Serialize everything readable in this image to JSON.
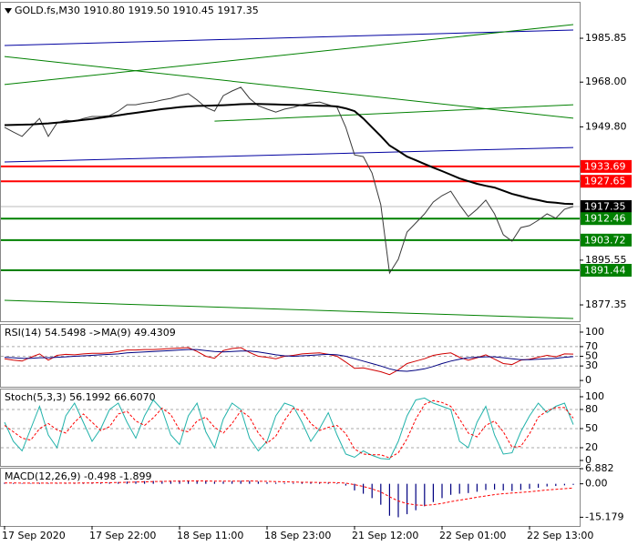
{
  "chart_data": [
    {
      "type": "line",
      "title": "GOLD.fs,M30  1910.80 1919.50 1910.45 1917.35",
      "categories": [
        "17 Sep 2020",
        null,
        null,
        null,
        null,
        null,
        null,
        null,
        null,
        null,
        "17 Sep 22:00",
        null,
        null,
        null,
        null,
        null,
        null,
        null,
        null,
        null,
        "18 Sep 11:00",
        null,
        null,
        null,
        null,
        null,
        null,
        null,
        null,
        null,
        "18 Sep 23:00",
        null,
        null,
        null,
        null,
        null,
        null,
        null,
        null,
        null,
        "21 Sep 12:00",
        null,
        null,
        null,
        null,
        null,
        null,
        null,
        null,
        null,
        "22 Sep 01:00",
        null,
        null,
        null,
        null,
        null,
        null,
        null,
        null,
        null,
        "22 Sep 13:00",
        null,
        null,
        null,
        null,
        null
      ],
      "ylim": [
        1870.7,
        2000.3
      ],
      "yticks": [
        1985.85,
        {
          "value": 1968,
          "label": "1968.00"
        },
        {
          "value": 1949.8,
          "label": "1949.80"
        },
        1895.55,
        1877.35
      ],
      "series": [
        {
          "color": "#3a3a3a",
          "width": 1,
          "values": [
            1949.6,
            1947.7,
            1945.9,
            1949.6,
            1953.2,
            1945.9,
            1951.4,
            1952.5,
            1952.1,
            1953.2,
            1954.0,
            1954.0,
            1954.4,
            1956.2,
            1958.8,
            1958.8,
            1959.5,
            1959.9,
            1960.7,
            1961.4,
            1962.5,
            1963.3,
            1960.7,
            1957.7,
            1956.2,
            1962.5,
            1964.4,
            1965.9,
            1961.4,
            1958.4,
            1957.0,
            1955.8,
            1957.0,
            1957.7,
            1958.8,
            1959.5,
            1959.9,
            1958.8,
            1957.7,
            1949.6,
            1938.4,
            1937.7,
            1931.0,
            1918.1,
            1890.3,
            1895.9,
            1907.0,
            1910.7,
            1914.4,
            1919.2,
            1921.8,
            1923.6,
            1918.1,
            1913.3,
            1916.3,
            1920.0,
            1914.4,
            1905.9,
            1903.3,
            1908.8,
            1909.6,
            1911.8,
            1914.4,
            1912.6,
            1916.3,
            1917.35
          ]
        },
        {
          "color": "#000000",
          "width": 2,
          "values": [
            1950.5,
            1950.6,
            1950.7,
            1950.8,
            1951.0,
            1951.2,
            1951.5,
            1951.8,
            1952.2,
            1952.6,
            1953.0,
            1953.5,
            1954.0,
            1954.5,
            1955.0,
            1955.5,
            1956.0,
            1956.5,
            1957.0,
            1957.4,
            1957.8,
            1958.1,
            1958.3,
            1958.4,
            1958.5,
            1958.6,
            1958.8,
            1959.0,
            1959.1,
            1959.1,
            1959.0,
            1958.9,
            1958.8,
            1958.7,
            1958.6,
            1958.5,
            1958.4,
            1958.3,
            1958.1,
            1957.3,
            1956.2,
            1953.2,
            1949.6,
            1946.0,
            1942.2,
            1940.0,
            1937.7,
            1936.2,
            1934.7,
            1933.2,
            1931.8,
            1930.3,
            1928.8,
            1927.7,
            1926.6,
            1925.8,
            1925.1,
            1923.8,
            1922.5,
            1921.6,
            1920.7,
            1920.0,
            1919.2,
            1918.9,
            1918.5,
            1918.4
          ]
        }
      ],
      "trendlines": [
        {
          "color": "#0000a0",
          "x": [
            0,
            65
          ],
          "values": [
            1982.9,
            1989.2
          ]
        },
        {
          "color": "#0000a0",
          "x": [
            0,
            65
          ],
          "values": [
            1935.5,
            1941.4
          ]
        },
        {
          "color": "#008000",
          "x": [
            0,
            65
          ],
          "values": [
            1967.0,
            1991.4
          ]
        },
        {
          "color": "#008000",
          "x": [
            0,
            65
          ],
          "values": [
            1978.4,
            1953.3
          ]
        },
        {
          "color": "#008000",
          "x": [
            24,
            65
          ],
          "values": [
            1952.1,
            1958.8
          ]
        },
        {
          "color": "#008000",
          "x": [
            0,
            65
          ],
          "values": [
            1879.2,
            1871.8
          ]
        }
      ],
      "levels": [
        {
          "value": 1933.69,
          "color": "#ff0000"
        },
        {
          "value": 1927.65,
          "color": "#ff0000"
        },
        {
          "value": 1917.35,
          "color": "#000000"
        },
        {
          "value": 1912.46,
          "color": "#008000"
        },
        {
          "value": 1903.72,
          "color": "#008000"
        },
        {
          "value": 1891.44,
          "color": "#008000"
        }
      ]
    },
    {
      "type": "line",
      "title": "RSI(14) 54.5498 ->MA(9) 49.4309",
      "ylim": [
        -13,
        115
      ],
      "yticks": [
        100,
        70,
        50,
        30,
        0
      ],
      "grid": true,
      "series": [
        {
          "color": "#d00000",
          "width": 1,
          "values": [
            45,
            42,
            40,
            48,
            55,
            42,
            52,
            54,
            53,
            55,
            56,
            56,
            57,
            60,
            63,
            63,
            64,
            64,
            65,
            66,
            67,
            68,
            60,
            50,
            46,
            62,
            66,
            68,
            58,
            50,
            48,
            45,
            50,
            52,
            55,
            56,
            57,
            54,
            50,
            38,
            25,
            26,
            22,
            18,
            12,
            22,
            35,
            40,
            45,
            52,
            55,
            57,
            48,
            42,
            47,
            53,
            44,
            35,
            33,
            42,
            44,
            48,
            52,
            49,
            55,
            54.5
          ]
        },
        {
          "color": "#000080",
          "width": 1,
          "values": [
            48,
            47,
            46,
            46,
            47,
            47,
            48,
            49,
            50,
            51,
            52,
            53,
            54,
            55,
            57,
            58,
            59,
            60,
            61,
            62,
            63,
            64,
            64,
            62,
            60,
            59,
            60,
            61,
            61,
            59,
            56,
            53,
            51,
            50,
            51,
            52,
            53,
            54,
            53,
            50,
            45,
            40,
            35,
            30,
            24,
            20,
            19,
            21,
            24,
            29,
            35,
            40,
            44,
            47,
            48,
            49,
            49,
            47,
            45,
            43,
            43,
            44,
            45,
            46,
            48,
            49.4
          ]
        }
      ]
    },
    {
      "type": "line",
      "title": "Stoch(5,3,3) 56.1992 66.6070",
      "ylim": [
        -8.6,
        111.4
      ],
      "yticks": [
        100,
        80,
        50,
        20,
        0
      ],
      "grid": true,
      "series": [
        {
          "color": "#20b2aa",
          "width": 1,
          "values": [
            60,
            30,
            15,
            50,
            85,
            40,
            20,
            70,
            90,
            60,
            30,
            50,
            80,
            90,
            60,
            35,
            70,
            95,
            80,
            40,
            25,
            70,
            90,
            45,
            20,
            65,
            90,
            80,
            35,
            15,
            30,
            70,
            90,
            85,
            60,
            30,
            50,
            75,
            40,
            10,
            5,
            15,
            8,
            3,
            2,
            30,
            70,
            95,
            98,
            90,
            85,
            80,
            30,
            20,
            60,
            85,
            40,
            10,
            12,
            45,
            70,
            90,
            75,
            85,
            90,
            56.2
          ]
        },
        {
          "color": "#ff0000",
          "width": 1,
          "dashed": true,
          "values": [
            55,
            45,
            35,
            32,
            50,
            58,
            48,
            43,
            60,
            73,
            60,
            47,
            53,
            73,
            77,
            62,
            55,
            67,
            82,
            72,
            48,
            45,
            62,
            68,
            52,
            43,
            58,
            78,
            68,
            43,
            27,
            38,
            63,
            82,
            78,
            58,
            47,
            52,
            55,
            42,
            18,
            10,
            9,
            9,
            4,
            12,
            34,
            65,
            88,
            94,
            91,
            85,
            65,
            43,
            37,
            55,
            62,
            45,
            21,
            22,
            42,
            68,
            78,
            83,
            83,
            66.6
          ]
        }
      ]
    },
    {
      "type": "bar",
      "title": "MACD(12,26,9) -0.498 -1.899",
      "ylim": [
        -19.15,
        6.882
      ],
      "yticks": [
        6.882,
        {
          "value": 0,
          "label": "0.00"
        },
        -15.179
      ],
      "series": [
        {
          "type": "bar",
          "color": "#000080",
          "values": [
            0.5,
            0.3,
            0.1,
            0.2,
            0.4,
            0.3,
            0.2,
            0.3,
            0.4,
            0.5,
            0.6,
            0.6,
            0.7,
            0.8,
            1.0,
            1.1,
            1.2,
            1.3,
            1.3,
            1.4,
            1.5,
            1.5,
            1.4,
            1.1,
            0.9,
            1.0,
            1.2,
            1.4,
            1.3,
            1.0,
            0.7,
            0.5,
            0.4,
            0.4,
            0.5,
            0.5,
            0.6,
            0.5,
            0.3,
            -0.8,
            -3.0,
            -4.5,
            -6.5,
            -9.5,
            -14.5,
            -15.2,
            -13.8,
            -12.0,
            -10.2,
            -8.3,
            -6.5,
            -5.0,
            -4.5,
            -4.2,
            -3.6,
            -2.8,
            -2.6,
            -3.0,
            -3.3,
            -2.8,
            -2.3,
            -1.8,
            -1.2,
            -1.0,
            -0.7,
            -0.498
          ]
        },
        {
          "type": "line",
          "color": "#ff0000",
          "width": 1,
          "dashed": true,
          "values": [
            0.4,
            0.4,
            0.3,
            0.3,
            0.3,
            0.3,
            0.3,
            0.3,
            0.3,
            0.4,
            0.4,
            0.5,
            0.5,
            0.6,
            0.7,
            0.8,
            0.9,
            1.0,
            1.1,
            1.2,
            1.2,
            1.3,
            1.3,
            1.3,
            1.2,
            1.2,
            1.2,
            1.2,
            1.3,
            1.2,
            1.1,
            1.0,
            0.9,
            0.8,
            0.7,
            0.7,
            0.6,
            0.6,
            0.5,
            0.3,
            -0.4,
            -1.2,
            -2.3,
            -3.7,
            -5.9,
            -7.8,
            -9.0,
            -9.6,
            -9.8,
            -9.5,
            -8.9,
            -8.1,
            -7.4,
            -6.8,
            -6.1,
            -5.5,
            -4.9,
            -4.5,
            -4.2,
            -3.9,
            -3.6,
            -3.2,
            -2.8,
            -2.5,
            -2.2,
            -1.899
          ]
        }
      ]
    }
  ]
}
